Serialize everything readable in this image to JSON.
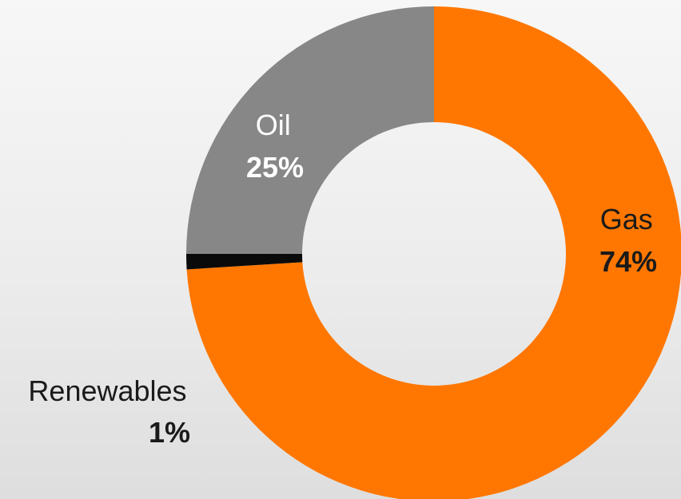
{
  "chart_data": {
    "type": "pie",
    "style": "donut",
    "categories": [
      "Gas",
      "Renewables",
      "Oil"
    ],
    "values": [
      74,
      1,
      25
    ],
    "value_labels": [
      "74%",
      "1%",
      "25%"
    ],
    "colors": [
      "#ff7700",
      "#0a0a0a",
      "#878787"
    ],
    "label_colors": [
      "#1a1a1a",
      "#1a1a1a",
      "#ffffff"
    ],
    "legend": false,
    "start": "top",
    "direction": "clockwise"
  }
}
